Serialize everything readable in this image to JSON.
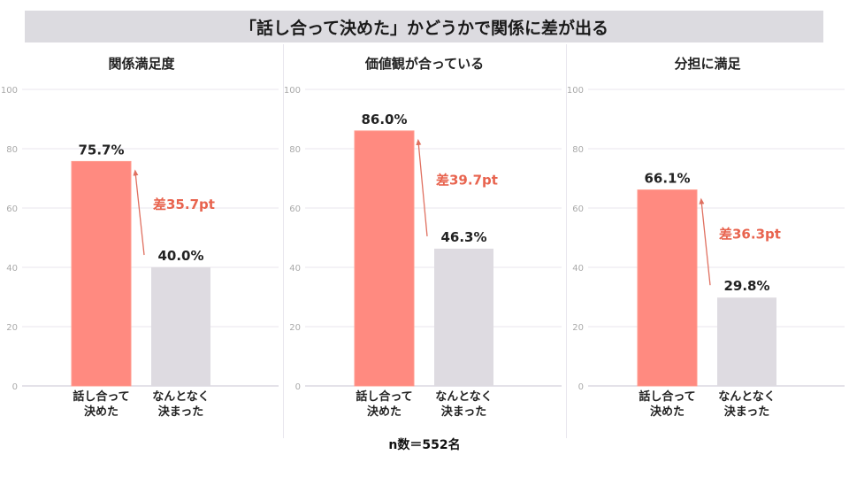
{
  "title": "「話し合って決めた」かどうかで関係に差が出る",
  "footnote": "n数＝552名",
  "colors": {
    "decided_bar": "#ff8a80",
    "decided_bar_edge": "#ff9b8e",
    "other_bar": "#dedbe1",
    "diff_text": "#e8644f",
    "arrow": "#e07060",
    "grid": "#e9e6ee",
    "tick_text": "#aaaaaa"
  },
  "chart_data": [
    {
      "type": "bar",
      "title": "関係満足度",
      "categories": [
        "話し合って\n決めた",
        "なんとなく\n決まった"
      ],
      "values": [
        75.7,
        40.0
      ],
      "data_labels": [
        "75.7%",
        "40.0%"
      ],
      "difference_label": "差35.7pt",
      "ylim": [
        0,
        100
      ],
      "yticks": [
        0,
        20,
        40,
        60,
        80,
        100
      ],
      "grid": true
    },
    {
      "type": "bar",
      "title": "価値観が合っている",
      "categories": [
        "話し合って\n決めた",
        "なんとなく\n決まった"
      ],
      "values": [
        86.0,
        46.3
      ],
      "data_labels": [
        "86.0%",
        "46.3%"
      ],
      "difference_label": "差39.7pt",
      "ylim": [
        0,
        100
      ],
      "yticks": [
        0,
        20,
        40,
        60,
        80,
        100
      ],
      "grid": true
    },
    {
      "type": "bar",
      "title": "分担に満足",
      "categories": [
        "話し合って\n決めた",
        "なんとなく\n決まった"
      ],
      "values": [
        66.1,
        29.8
      ],
      "data_labels": [
        "66.1%",
        "29.8%"
      ],
      "difference_label": "差36.3pt",
      "ylim": [
        0,
        100
      ],
      "yticks": [
        0,
        20,
        40,
        60,
        80,
        100
      ],
      "grid": true
    }
  ]
}
